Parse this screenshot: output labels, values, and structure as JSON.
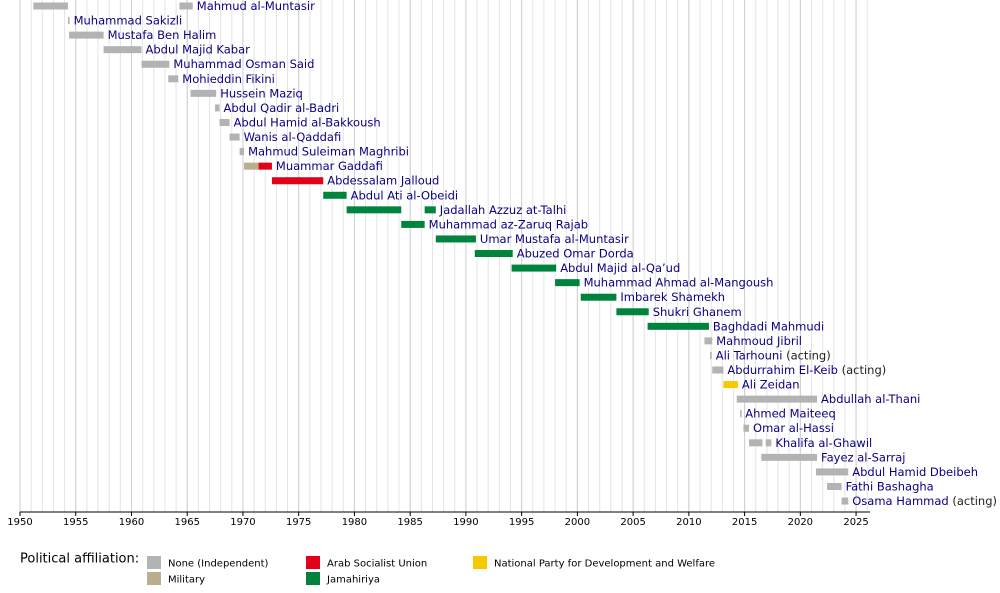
{
  "chart_data": {
    "type": "timeline",
    "xlim": [
      1950,
      2026.25
    ],
    "xticks": [
      1950,
      1955,
      1960,
      1965,
      1970,
      1975,
      1980,
      1985,
      1990,
      1995,
      2000,
      2005,
      2010,
      2015,
      2020,
      2025
    ],
    "grid": true,
    "grid_step": 1,
    "legend_title": "Political affiliation:",
    "affiliations": [
      {
        "name": "None (Independent)",
        "color": "#b3b3b3"
      },
      {
        "name": "Military",
        "color": "#bbad8e"
      },
      {
        "name": "Arab Socialist Union",
        "color": "#e3001b"
      },
      {
        "name": "Jamahiriya",
        "color": "#00843d"
      },
      {
        "name": "National Party for Development and Welfare",
        "color": "#f5c800"
      }
    ],
    "rows": [
      {
        "name": "Mahmud al-Muntasir",
        "segments": [
          {
            "start": 1951.2,
            "end": 1954.3,
            "party": 0
          },
          {
            "start": 1964.3,
            "end": 1965.5,
            "party": 0
          }
        ]
      },
      {
        "name": "Muhammad Sakizli",
        "segments": [
          {
            "start": 1954.3,
            "end": 1954.45,
            "party": 0
          }
        ]
      },
      {
        "name": "Mustafa Ben Halim",
        "segments": [
          {
            "start": 1954.4,
            "end": 1957.5,
            "party": 0
          }
        ]
      },
      {
        "name": "Abdul Majid Kabar",
        "segments": [
          {
            "start": 1957.5,
            "end": 1960.9,
            "party": 0
          }
        ]
      },
      {
        "name": "Muhammad Osman Said",
        "segments": [
          {
            "start": 1960.9,
            "end": 1963.4,
            "party": 0
          }
        ]
      },
      {
        "name": "Mohieddin Fikini",
        "segments": [
          {
            "start": 1963.3,
            "end": 1964.2,
            "party": 0
          }
        ]
      },
      {
        "name": "Hussein Maziq",
        "segments": [
          {
            "start": 1965.3,
            "end": 1967.6,
            "party": 0
          }
        ]
      },
      {
        "name": "Abdul Qadir al-Badri",
        "segments": [
          {
            "start": 1967.5,
            "end": 1967.9,
            "party": 0
          }
        ]
      },
      {
        "name": "Abdul Hamid al-Bakkoush",
        "segments": [
          {
            "start": 1967.9,
            "end": 1968.8,
            "party": 0
          }
        ]
      },
      {
        "name": "Wanis al-Qaddafi",
        "segments": [
          {
            "start": 1968.8,
            "end": 1969.7,
            "party": 0
          }
        ]
      },
      {
        "name": "Mahmud Suleiman Maghribi",
        "segments": [
          {
            "start": 1969.7,
            "end": 1970.1,
            "party": 0
          }
        ]
      },
      {
        "name": "Muammar Gaddafi",
        "segments": [
          {
            "start": 1970.1,
            "end": 1971.4,
            "party": 1
          },
          {
            "start": 1971.4,
            "end": 1972.6,
            "party": 2
          }
        ]
      },
      {
        "name": "Abdessalam Jalloud",
        "segments": [
          {
            "start": 1972.6,
            "end": 1977.2,
            "party": 2
          }
        ]
      },
      {
        "name": "Abdul Ati al-Obeidi",
        "segments": [
          {
            "start": 1977.2,
            "end": 1979.3,
            "party": 3
          }
        ]
      },
      {
        "name": "Jadallah Azzuz at-Talhi",
        "segments": [
          {
            "start": 1979.3,
            "end": 1984.2,
            "party": 3
          },
          {
            "start": 1986.3,
            "end": 1987.3,
            "party": 3
          }
        ]
      },
      {
        "name": "Muhammad az-Zaruq Rajab",
        "segments": [
          {
            "start": 1984.2,
            "end": 1986.3,
            "party": 3
          }
        ]
      },
      {
        "name": "Umar Mustafa al-Muntasir",
        "segments": [
          {
            "start": 1987.3,
            "end": 1990.9,
            "party": 3
          }
        ]
      },
      {
        "name": "Abuzed Omar Dorda",
        "segments": [
          {
            "start": 1990.8,
            "end": 1994.2,
            "party": 3
          }
        ]
      },
      {
        "name": "Abdul Majid al-Qa’ud",
        "segments": [
          {
            "start": 1994.1,
            "end": 1998.1,
            "party": 3
          }
        ]
      },
      {
        "name": "Muhammad Ahmad al-Mangoush",
        "segments": [
          {
            "start": 1998.0,
            "end": 2000.2,
            "party": 3
          }
        ]
      },
      {
        "name": "Imbarek Shamekh",
        "segments": [
          {
            "start": 2000.3,
            "end": 2003.5,
            "party": 3
          }
        ]
      },
      {
        "name": "Shukri Ghanem",
        "segments": [
          {
            "start": 2003.5,
            "end": 2006.4,
            "party": 3
          }
        ]
      },
      {
        "name": "Baghdadi Mahmudi",
        "segments": [
          {
            "start": 2006.3,
            "end": 2011.8,
            "party": 3
          }
        ]
      },
      {
        "name": "Mahmoud Jibril",
        "segments": [
          {
            "start": 2011.4,
            "end": 2012.1,
            "party": 0
          }
        ]
      },
      {
        "name": "Ali Tarhouni",
        "note": "(acting)",
        "segments": [
          {
            "start": 2011.9,
            "end": 2012.05,
            "party": 0
          }
        ]
      },
      {
        "name": "Abdurrahim El-Keib",
        "note": "(acting)",
        "segments": [
          {
            "start": 2012.1,
            "end": 2013.1,
            "party": 0
          }
        ]
      },
      {
        "name": "Ali Zeidan",
        "segments": [
          {
            "start": 2013.1,
            "end": 2014.4,
            "party": 4
          }
        ]
      },
      {
        "name": "Abdullah al-Thani",
        "segments": [
          {
            "start": 2014.3,
            "end": 2021.5,
            "party": 0
          }
        ]
      },
      {
        "name": "Ahmed Maiteeq",
        "segments": [
          {
            "start": 2014.6,
            "end": 2014.7,
            "party": 0
          }
        ]
      },
      {
        "name": "Omar al-Hassi",
        "segments": [
          {
            "start": 2014.9,
            "end": 2015.4,
            "party": 0
          }
        ]
      },
      {
        "name": "Khalifa al-Ghawil",
        "segments": [
          {
            "start": 2015.4,
            "end": 2016.6,
            "party": 0
          },
          {
            "start": 2016.9,
            "end": 2017.4,
            "party": 0
          }
        ]
      },
      {
        "name": "Fayez al-Sarraj",
        "segments": [
          {
            "start": 2016.5,
            "end": 2021.5,
            "party": 0
          }
        ]
      },
      {
        "name": "Abdul Hamid Dbeibeh",
        "segments": [
          {
            "start": 2021.4,
            "end": 2024.3,
            "party": 0
          }
        ]
      },
      {
        "name": "Fathi Bashagha",
        "segments": [
          {
            "start": 2022.4,
            "end": 2023.7,
            "party": 0
          }
        ]
      },
      {
        "name": "Osama Hammad",
        "note": "(acting)",
        "segments": [
          {
            "start": 2023.7,
            "end": 2024.3,
            "party": 0
          }
        ]
      }
    ]
  }
}
